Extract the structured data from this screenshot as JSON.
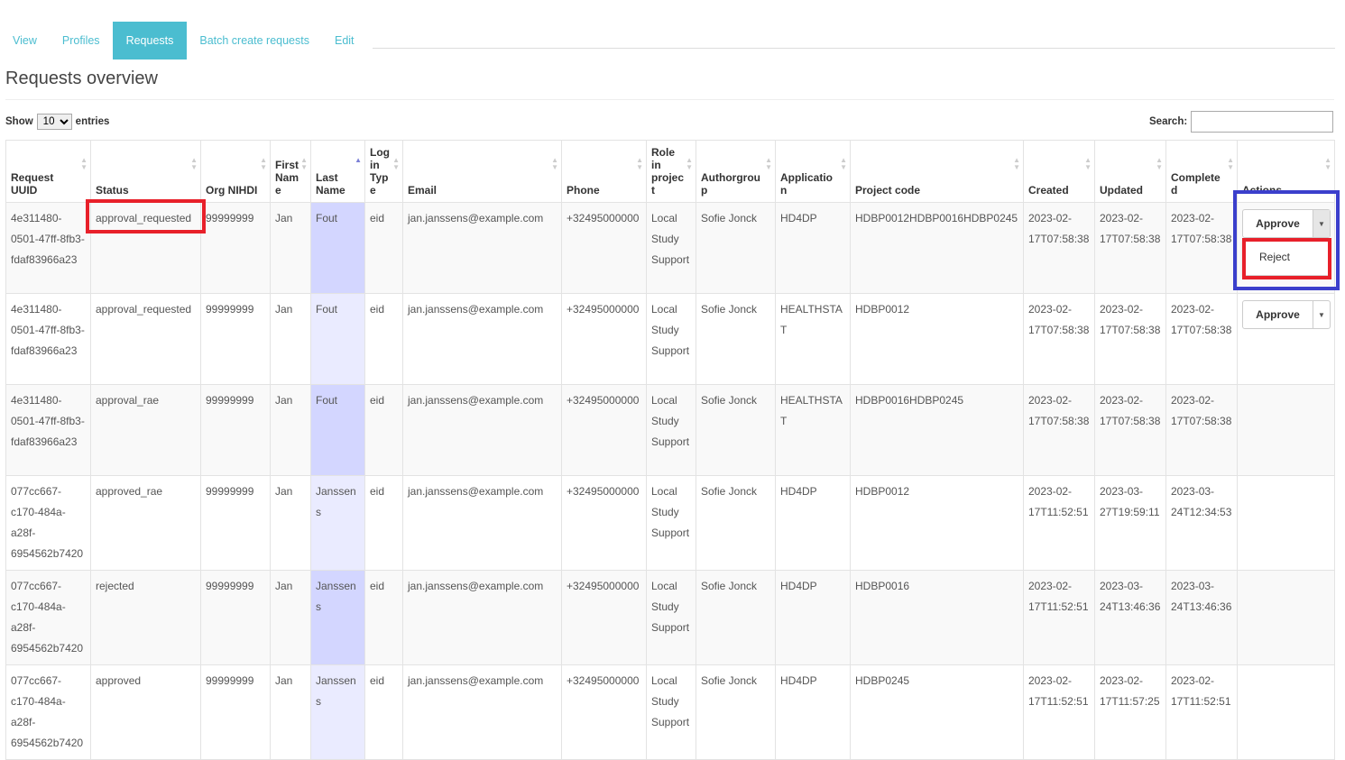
{
  "tabs": [
    {
      "label": "View"
    },
    {
      "label": "Profiles"
    },
    {
      "label": "Requests",
      "active": true
    },
    {
      "label": "Batch create requests"
    },
    {
      "label": "Edit"
    }
  ],
  "page_title": "Requests overview",
  "length": {
    "show": "Show",
    "value": "10",
    "entries": "entries"
  },
  "search": {
    "label": "Search:",
    "value": ""
  },
  "columns": [
    "Request UUID",
    "Status",
    "Org NIHDI",
    "First Name",
    "Last Name",
    "Login Type",
    "Email",
    "Phone",
    "Role in project",
    "Authorgroup",
    "Application",
    "Project code",
    "Created",
    "Updated",
    "Completed",
    "Actions"
  ],
  "sorted_column": "Last Name",
  "rows": [
    {
      "uuid": "4e311480-0501-47ff-8fb3-fdaf83966a23",
      "status": "approval_requested",
      "org": "99999999",
      "first": "Jan",
      "last": "Fout",
      "login": "eid",
      "email": "jan.janssens@example.com",
      "phone": "+32495000000",
      "role": "Local Study Support",
      "authorgroup": "Sofie Jonck",
      "application": "HD4DP",
      "project": "HDBP0012HDBP0016HDBP0245",
      "created": "2023-02-17T07:58:38",
      "updated": "2023-02-17T07:58:38",
      "completed": "2023-02-17T07:58:38",
      "action": "Approve"
    },
    {
      "uuid": "4e311480-0501-47ff-8fb3-fdaf83966a23",
      "status": "approval_requested",
      "org": "99999999",
      "first": "Jan",
      "last": "Fout",
      "login": "eid",
      "email": "jan.janssens@example.com",
      "phone": "+32495000000",
      "role": "Local Study Support",
      "authorgroup": "Sofie Jonck",
      "application": "HEALTHSTAT",
      "project": "HDBP0012",
      "created": "2023-02-17T07:58:38",
      "updated": "2023-02-17T07:58:38",
      "completed": "2023-02-17T07:58:38",
      "action": "Approve"
    },
    {
      "uuid": "4e311480-0501-47ff-8fb3-fdaf83966a23",
      "status": "approval_rae",
      "org": "99999999",
      "first": "Jan",
      "last": "Fout",
      "login": "eid",
      "email": "jan.janssens@example.com",
      "phone": "+32495000000",
      "role": "Local Study Support",
      "authorgroup": "Sofie Jonck",
      "application": "HEALTHSTAT",
      "project": "HDBP0016HDBP0245",
      "created": "2023-02-17T07:58:38",
      "updated": "2023-02-17T07:58:38",
      "completed": "2023-02-17T07:58:38",
      "action": ""
    },
    {
      "uuid": "077cc667-c170-484a-a28f-6954562b7420",
      "status": "approved_rae",
      "org": "99999999",
      "first": "Jan",
      "last": "Janssens",
      "login": "eid",
      "email": "jan.janssens@example.com",
      "phone": "+32495000000",
      "role": "Local Study Support",
      "authorgroup": "Sofie Jonck",
      "application": "HD4DP",
      "project": "HDBP0012",
      "created": "2023-02-17T11:52:51",
      "updated": "2023-03-27T19:59:11",
      "completed": "2023-03-24T12:34:53",
      "action": ""
    },
    {
      "uuid": "077cc667-c170-484a-a28f-6954562b7420",
      "status": "rejected",
      "org": "99999999",
      "first": "Jan",
      "last": "Janssens",
      "login": "eid",
      "email": "jan.janssens@example.com",
      "phone": "+32495000000",
      "role": "Local Study Support",
      "authorgroup": "Sofie Jonck",
      "application": "HD4DP",
      "project": "HDBP0016",
      "created": "2023-02-17T11:52:51",
      "updated": "2023-03-24T13:46:36",
      "completed": "2023-03-24T13:46:36",
      "action": ""
    },
    {
      "uuid": "077cc667-c170-484a-a28f-6954562b7420",
      "status": "approved",
      "org": "99999999",
      "first": "Jan",
      "last": "Janssens",
      "login": "eid",
      "email": "jan.janssens@example.com",
      "phone": "+32495000000",
      "role": "Local Study Support",
      "authorgroup": "Sofie Jonck",
      "application": "HD4DP",
      "project": "HDBP0245",
      "created": "2023-02-17T11:52:51",
      "updated": "2023-02-17T11:57:25",
      "completed": "2023-02-17T11:52:51",
      "action": ""
    }
  ],
  "dropdown": {
    "item": "Reject"
  },
  "colors": {
    "accent": "#4bbdd0",
    "annotation_red": "#e8202a",
    "annotation_blue": "#3b3fcc",
    "sorted_col": "#d3d6ff"
  }
}
